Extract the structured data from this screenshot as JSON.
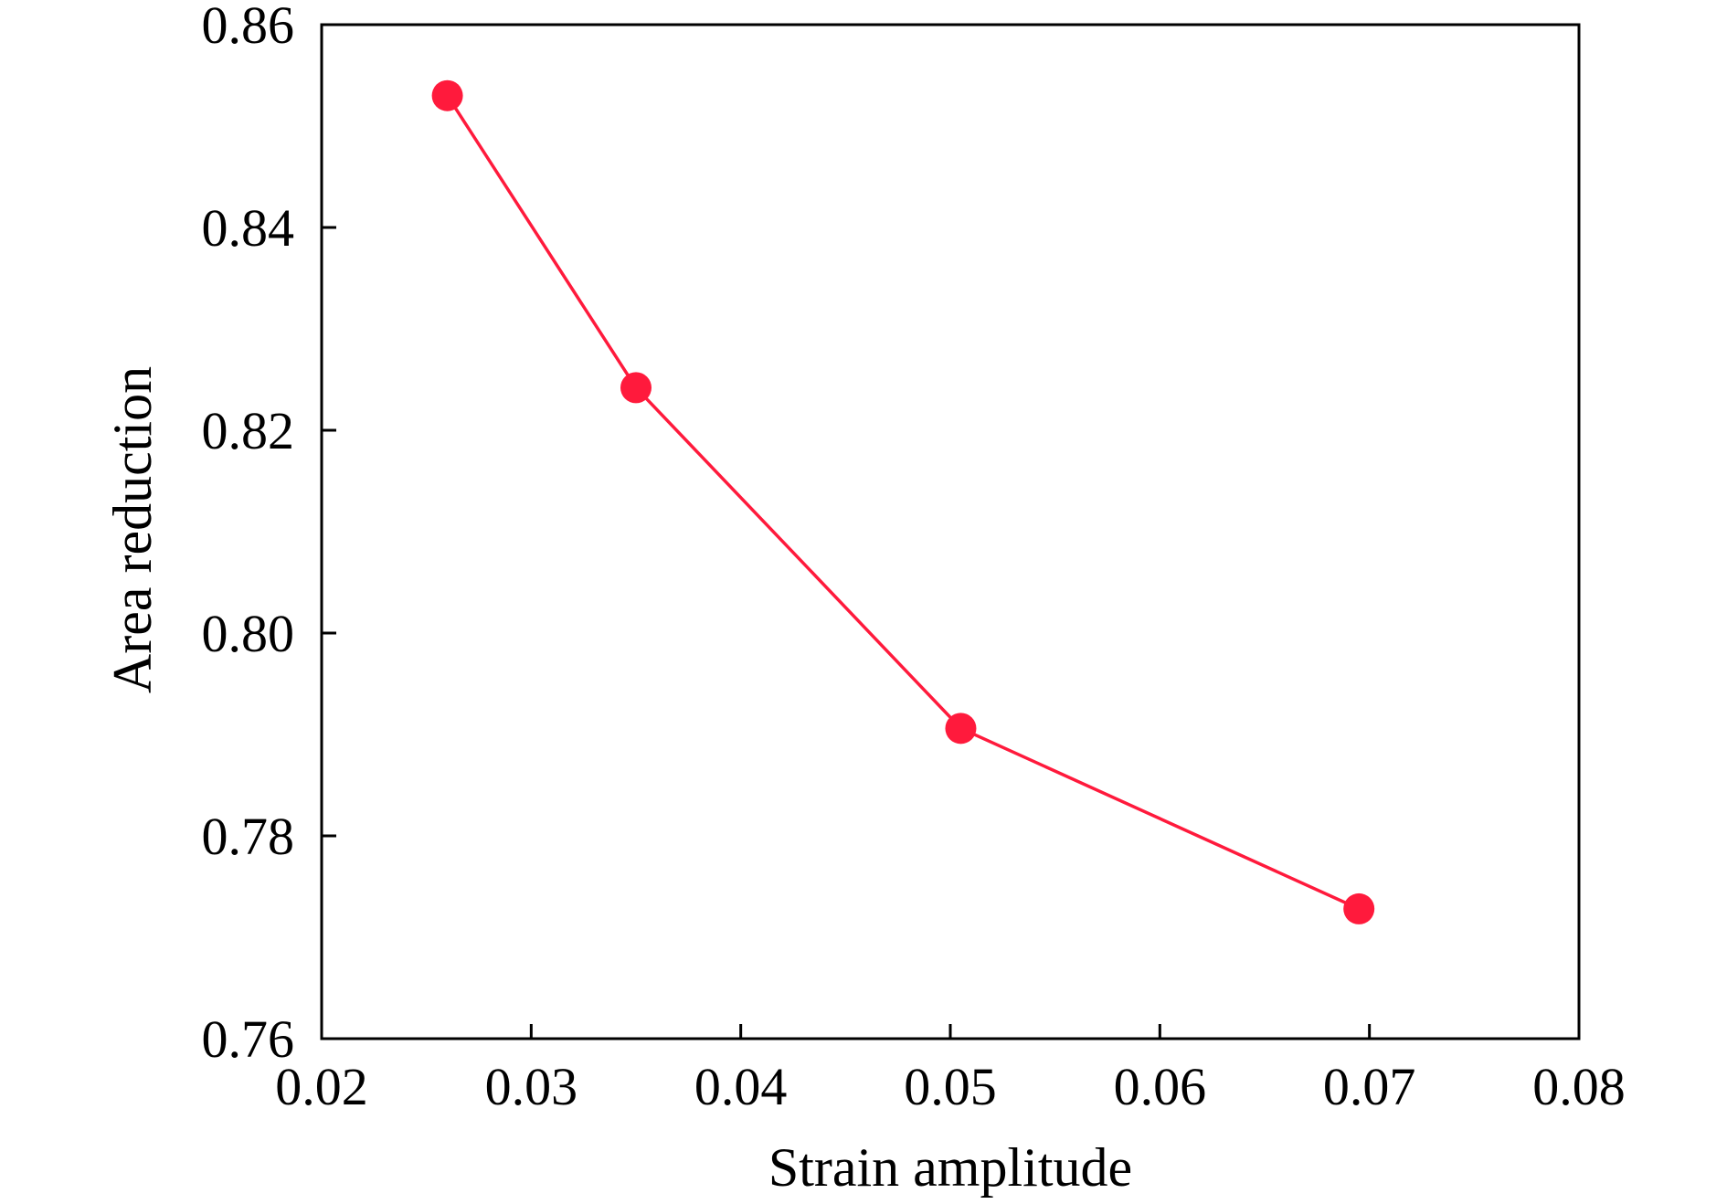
{
  "chart_data": {
    "type": "line",
    "title": "",
    "xlabel": "Strain amplitude",
    "ylabel": "Area reduction",
    "xlim": [
      0.02,
      0.08
    ],
    "ylim": [
      0.76,
      0.86
    ],
    "x_ticks": [
      0.02,
      0.03,
      0.04,
      0.05,
      0.06,
      0.07,
      0.08
    ],
    "x_tick_labels": [
      "0.02",
      "0.03",
      "0.04",
      "0.05",
      "0.06",
      "0.07",
      "0.08"
    ],
    "y_ticks": [
      0.76,
      0.78,
      0.8,
      0.82,
      0.84,
      0.86
    ],
    "y_tick_labels": [
      "0.76",
      "0.78",
      "0.80",
      "0.82",
      "0.84",
      "0.86"
    ],
    "grid": false,
    "legend": "none",
    "series": [
      {
        "color": "#ff1a3c",
        "marker": "circle",
        "x": [
          0.026,
          0.035,
          0.0505,
          0.0695
        ],
        "y": [
          0.853,
          0.8242,
          0.7906,
          0.7728
        ]
      }
    ]
  }
}
